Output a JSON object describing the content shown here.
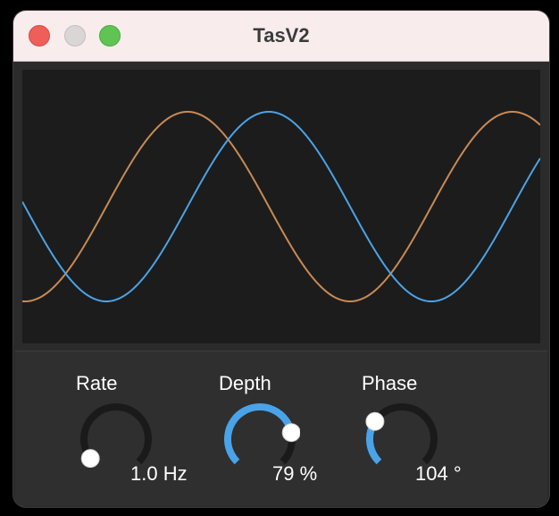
{
  "window": {
    "title": "TasV2"
  },
  "colors": {
    "accent": "#4aa3e8",
    "wave_a": "#4aa3e8",
    "wave_b": "#c88a55",
    "track": "#1a1a1a",
    "handle": "#ffffff"
  },
  "knobs": [
    {
      "label": "Rate",
      "value_text": "1.0 Hz",
      "level": 0.03
    },
    {
      "label": "Depth",
      "value_text": "79 %",
      "level": 0.79
    },
    {
      "label": "Phase",
      "value_text": "104 °",
      "level": 0.29
    }
  ]
}
